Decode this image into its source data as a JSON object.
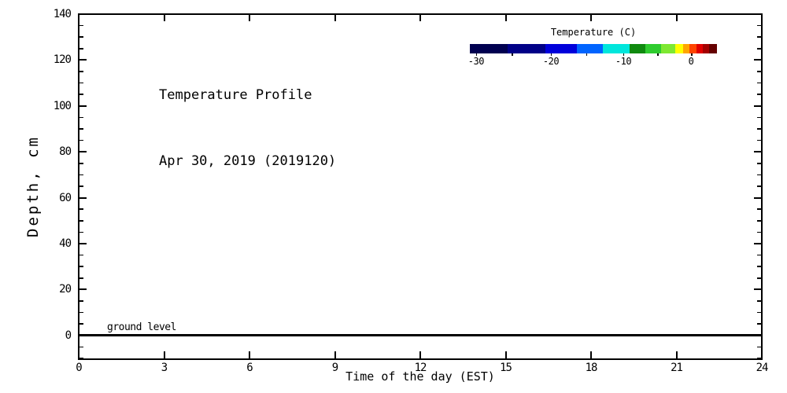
{
  "chart_data": {
    "type": "heatmap",
    "title": "Temperature Profile",
    "subtitle": "Apr 30, 2019 (2019120)",
    "xlabel": "Time of the day (EST)",
    "ylabel": "Depth, cm",
    "xlim": [
      0,
      24
    ],
    "ylim": [
      -10,
      140
    ],
    "x_major_ticks": [
      0,
      3,
      6,
      9,
      12,
      15,
      18,
      21,
      24
    ],
    "y_major_ticks": [
      0,
      20,
      40,
      60,
      80,
      100,
      120,
      140
    ],
    "y_minor_step": 5,
    "grid": false,
    "values": [],
    "plot_area_empty": true,
    "annotations": [
      {
        "text": "ground level",
        "depth": 0
      }
    ],
    "axis_color": "#000000",
    "text_color": "#000000",
    "background_color": "#FFFFFF",
    "colorbar": {
      "title": "Temperature (C)",
      "position": "top-right",
      "ticks": [
        {
          "label": "-30",
          "pos": 0.025
        },
        {
          "label": "",
          "pos": 0.169
        },
        {
          "label": "-20",
          "pos": 0.328
        },
        {
          "label": "",
          "pos": 0.471
        },
        {
          "label": "-10",
          "pos": 0.621
        },
        {
          "label": "",
          "pos": 0.758
        },
        {
          "label": "0",
          "pos": 0.895
        }
      ],
      "segments": [
        {
          "color": "#000050",
          "w": 0.153
        },
        {
          "color": "#000087",
          "w": 0.153
        },
        {
          "color": "#0000DB",
          "w": 0.127
        },
        {
          "color": "#0064FF",
          "w": 0.105
        },
        {
          "color": "#00E6DC",
          "w": 0.108
        },
        {
          "color": "#0F8A0F",
          "w": 0.064
        },
        {
          "color": "#2FCC2F",
          "w": 0.064
        },
        {
          "color": "#7EE832",
          "w": 0.057
        },
        {
          "color": "#FFFF00",
          "w": 0.032
        },
        {
          "color": "#FFA500",
          "w": 0.025
        },
        {
          "color": "#FF4400",
          "w": 0.029
        },
        {
          "color": "#E10000",
          "w": 0.025
        },
        {
          "color": "#A40000",
          "w": 0.025
        },
        {
          "color": "#650000",
          "w": 0.032
        }
      ]
    }
  }
}
